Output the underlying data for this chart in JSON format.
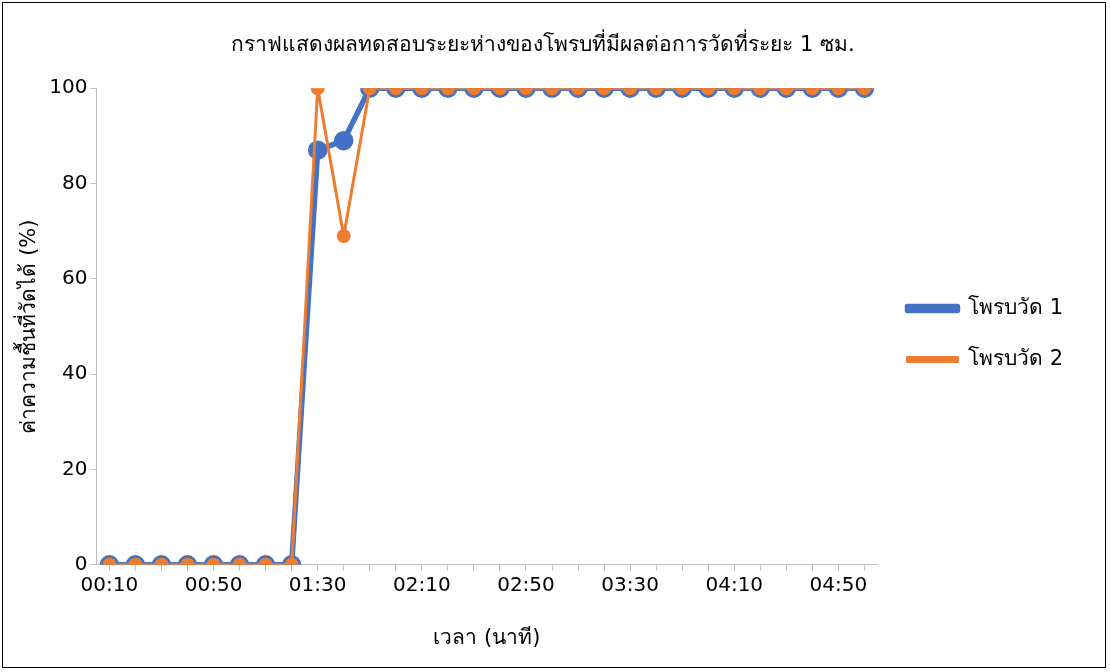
{
  "chart_data": {
    "type": "line",
    "title": "กราฟแสดงผลทดสอบระยะห่างของโพรบที่มีผลต่อการวัดที่ระยะ 1 ซม.",
    "xlabel": "เวลา (นาที)",
    "ylabel": "ค่าความชื้นที่วัดได้ (%)",
    "categories": [
      "00:10",
      null,
      null,
      null,
      "00:50",
      null,
      null,
      null,
      "01:30",
      null,
      null,
      null,
      "02:10",
      null,
      null,
      null,
      "02:50",
      null,
      null,
      null,
      "03:30",
      null,
      null,
      null,
      "04:10",
      null,
      null,
      null,
      "04:50",
      null
    ],
    "series": [
      {
        "name": "โพรบวัด 1",
        "color": "#4472c4",
        "values": [
          0,
          0,
          0,
          0,
          0,
          0,
          0,
          0,
          87,
          89,
          100,
          100,
          100,
          100,
          100,
          100,
          100,
          100,
          100,
          100,
          100,
          100,
          100,
          100,
          100,
          100,
          100,
          100,
          100,
          100
        ]
      },
      {
        "name": "โพรบวัด 2",
        "color": "#ed7d31",
        "values": [
          0,
          0,
          0,
          0,
          0,
          0,
          0,
          0,
          100,
          69,
          100,
          100,
          100,
          100,
          100,
          100,
          100,
          100,
          100,
          100,
          100,
          100,
          100,
          100,
          100,
          100,
          100,
          100,
          100,
          100
        ]
      }
    ],
    "ylim": [
      0,
      100
    ],
    "yticks": [
      0,
      20,
      40,
      60,
      80,
      100
    ],
    "legend": "right",
    "marker": "circle",
    "line_style": "solid"
  }
}
